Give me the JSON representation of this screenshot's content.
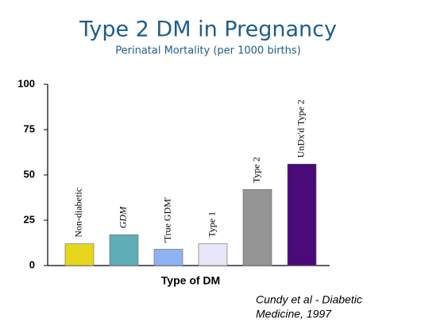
{
  "chart_data": {
    "type": "bar",
    "title": "Type 2 DM in Pregnancy",
    "subtitle": "Perinatal Mortality (per 1000 births)",
    "x_label": "Type of DM",
    "annotation": [
      "Cundy et al - Diabetic",
      "Medicine, 1997"
    ],
    "categories": [
      "Non-diabetic",
      "GDM",
      "'True GDM'",
      "Type 1",
      "Type 2",
      "UnDx'd Type 2"
    ],
    "values": [
      12,
      17,
      9,
      12,
      42,
      56
    ],
    "colors": [
      "#e6d61c",
      "#5fadb6",
      "#8fb3f2",
      "#e6e6f6",
      "#959595",
      "#4a0a7a"
    ],
    "ylim": [
      0,
      100
    ],
    "yticks": [
      0,
      25,
      50,
      75,
      100
    ],
    "grid": false
  }
}
